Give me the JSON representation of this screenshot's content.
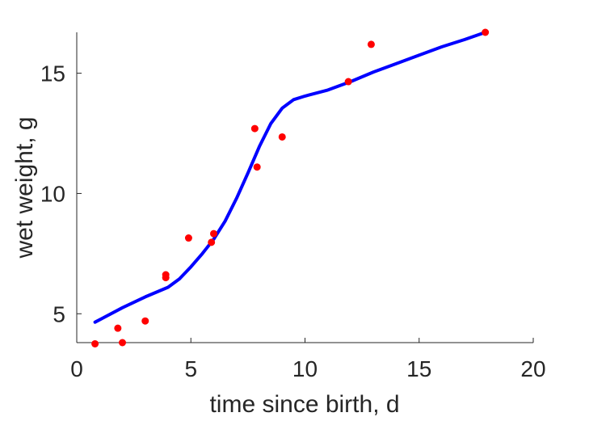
{
  "chart_data": {
    "type": "scatter",
    "xlabel": "time since birth, d",
    "ylabel": "wet weight, g",
    "xlim": [
      0,
      20
    ],
    "ylim": [
      3.8,
      16.7
    ],
    "xticks": [
      "0",
      "5",
      "10",
      "15",
      "20"
    ],
    "yticks": [
      "5",
      "10",
      "15"
    ],
    "grid": false,
    "colors": {
      "points": "#ff0000",
      "curve": "#0000ff",
      "axes": "#262626"
    },
    "series": [
      {
        "type": "scatter",
        "x": [
          0.8,
          1.8,
          2.0,
          3.0,
          3.9,
          3.9,
          4.9,
          5.9,
          6.0,
          7.8,
          7.9,
          9.0,
          11.9,
          12.9,
          17.9
        ],
        "y": [
          3.75,
          4.4,
          3.8,
          4.7,
          6.5,
          6.62,
          8.15,
          7.97,
          8.33,
          12.7,
          11.1,
          12.35,
          14.65,
          16.2,
          16.7
        ]
      },
      {
        "type": "line",
        "x": [
          0.8,
          2.0,
          3.0,
          4.0,
          4.5,
          5.0,
          5.5,
          6.0,
          6.5,
          7.0,
          7.5,
          8.0,
          8.5,
          9.0,
          9.5,
          10.0,
          11.0,
          12.0,
          13.0,
          14.0,
          15.0,
          16.0,
          17.0,
          17.9
        ],
        "y": [
          4.65,
          5.25,
          5.7,
          6.1,
          6.45,
          6.95,
          7.5,
          8.1,
          8.85,
          9.8,
          10.85,
          11.95,
          12.9,
          13.55,
          13.9,
          14.05,
          14.3,
          14.65,
          15.05,
          15.4,
          15.75,
          16.1,
          16.4,
          16.7
        ]
      }
    ]
  }
}
